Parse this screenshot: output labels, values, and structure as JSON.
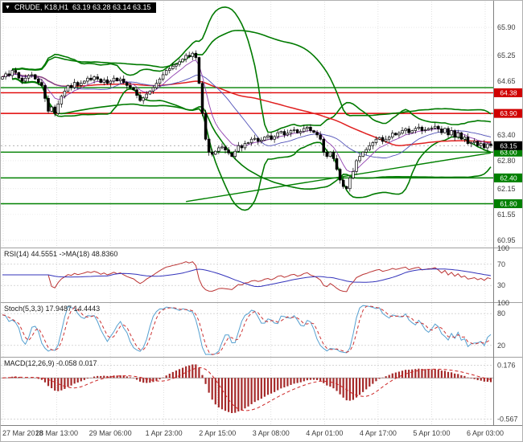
{
  "title_bar": {
    "marker": "▼",
    "symbol": "CRUDE, K18,H1",
    "ohlc": "63.19 63.28 63.14 63.15"
  },
  "panels": {
    "rsi_label": "RSI(14) 44.5551  ->MA(18) 48.8360",
    "stoch_label": "Stoch(5,3,3) 17.9487 14.4443",
    "macd_label": "MACD(12,26,9) -0.058 0.017"
  },
  "colors": {
    "background": "#ffffff",
    "grid": "#cccccc",
    "axis_text": "#3c3c3c",
    "candle_bull": "#ffffff",
    "candle_bear": "#000000",
    "candle_border": "#000000",
    "bollinger": "#007a00",
    "level_green": "#008000",
    "level_red": "#e00000",
    "ma_red": "#e02020",
    "ma_blue": "#5050b8",
    "ma_purple": "#9040b0",
    "rsi_line": "#bb3333",
    "rsi_ma": "#3333bb",
    "stoch_k": "#55a0d0",
    "stoch_d": "#cc3333",
    "macd_bar": "#a52a2a",
    "macd_signal": "#cc2222",
    "tag_red": "#d00000",
    "tag_green": "#008000",
    "tag_black": "#000000"
  },
  "chart_data": {
    "type": "candlestick",
    "symbol": "CRUDE",
    "timeframe": "H1",
    "x_labels": [
      "27 Mar 2018",
      "28 Mar 13:00",
      "29 Mar 06:00",
      "1 Apr 23:00",
      "2 Apr 15:00",
      "3 Apr 08:00",
      "4 Apr 01:00",
      "4 Apr 17:00",
      "5 Apr 10:00",
      "6 Apr 03:00"
    ],
    "y_axis_ticks": [
      "65.90",
      "65.25",
      "64.65",
      "63.40",
      "62.80",
      "62.15",
      "61.55",
      "60.95"
    ],
    "price_range": [
      60.8,
      66.5
    ],
    "last_ohlc": {
      "open": "63.19",
      "high": "63.28",
      "low": "63.14",
      "close": "63.15"
    },
    "first_open": 64.7,
    "closes": [
      64.75,
      64.82,
      64.78,
      64.9,
      64.85,
      64.72,
      64.65,
      64.72,
      64.78,
      64.8,
      64.7,
      64.62,
      64.55,
      64.25,
      63.95,
      64.05,
      63.9,
      64.12,
      64.3,
      64.42,
      64.55,
      64.5,
      64.62,
      64.55,
      64.6,
      64.65,
      64.72,
      64.68,
      64.75,
      64.7,
      64.62,
      64.68,
      64.6,
      64.65,
      64.72,
      64.66,
      64.7,
      64.62,
      64.55,
      64.5,
      64.45,
      64.32,
      64.2,
      64.26,
      64.35,
      64.42,
      64.5,
      64.6,
      64.7,
      64.8,
      64.9,
      64.94,
      65.0,
      65.04,
      65.1,
      65.16,
      65.25,
      65.22,
      65.3,
      65.2,
      64.6,
      63.9,
      63.3,
      63.0,
      62.95,
      63.02,
      63.1,
      63.12,
      63.05,
      62.98,
      62.9,
      63.02,
      63.15,
      63.1,
      63.2,
      63.22,
      63.3,
      63.32,
      63.25,
      63.28,
      63.35,
      63.38,
      63.3,
      63.36,
      63.45,
      63.48,
      63.4,
      63.44,
      63.5,
      63.52,
      63.45,
      63.48,
      63.55,
      63.58,
      63.5,
      63.46,
      63.4,
      63.3,
      63.0,
      62.9,
      63.0,
      62.85,
      62.6,
      62.35,
      62.2,
      62.15,
      62.4,
      62.55,
      62.8,
      62.9,
      63.0,
      63.06,
      63.15,
      63.22,
      63.3,
      63.34,
      63.25,
      63.3,
      63.35,
      63.44,
      63.4,
      63.44,
      63.5,
      63.54,
      63.45,
      63.5,
      63.55,
      63.58,
      63.5,
      63.52,
      63.55,
      63.56,
      63.6,
      63.54,
      63.45,
      63.55,
      63.4,
      63.5,
      63.35,
      63.45,
      63.3,
      63.35,
      63.2,
      63.22,
      63.25,
      63.15,
      63.2,
      63.1,
      63.19,
      63.15
    ],
    "levels": [
      {
        "price": 64.5,
        "type": "resistance",
        "color": "green",
        "tag": ""
      },
      {
        "price": 64.38,
        "type": "resistance",
        "color": "red",
        "tag": "64.38"
      },
      {
        "price": 63.9,
        "type": "resistance",
        "color": "red",
        "tag": "63.90"
      },
      {
        "price": 63.0,
        "type": "support",
        "color": "green",
        "tag": "63.00"
      },
      {
        "price": 62.4,
        "type": "support",
        "color": "green",
        "tag": "62.40"
      },
      {
        "price": 61.8,
        "type": "support",
        "color": "green",
        "tag": "61.80"
      }
    ],
    "current_price": {
      "price": 63.15,
      "tag": "63.15"
    },
    "trendline": {
      "from_index": 56,
      "from_price": 61.85,
      "to_index": 149,
      "to_price": 62.98
    },
    "overlays": {
      "bollinger_fast": {
        "period": 20,
        "deviation": 2.2
      },
      "bollinger_slow": {
        "period": 45,
        "deviation": 2.0
      },
      "ma_red": {
        "period": 60
      },
      "ma_blue": {
        "period": 20
      },
      "ma_purple": {
        "period": 8
      }
    },
    "rsi": {
      "period": 14,
      "value": 44.5551,
      "ma_period": 18,
      "ma_value": 48.836,
      "ticks": [
        "100",
        "70",
        "30"
      ],
      "range": [
        0,
        100
      ]
    },
    "stoch": {
      "k": 5,
      "d": 3,
      "slowing": 3,
      "value": 17.9487,
      "signal_value": 14.4443,
      "ticks": [
        "100",
        "80",
        "20"
      ],
      "range": [
        0,
        100
      ]
    },
    "macd": {
      "fast": 12,
      "slow": 26,
      "signal": 9,
      "value": -0.058,
      "signal_val": 0.017,
      "ticks": [
        "0.176",
        "-0.567"
      ],
      "range": [
        -0.65,
        0.28
      ]
    }
  }
}
